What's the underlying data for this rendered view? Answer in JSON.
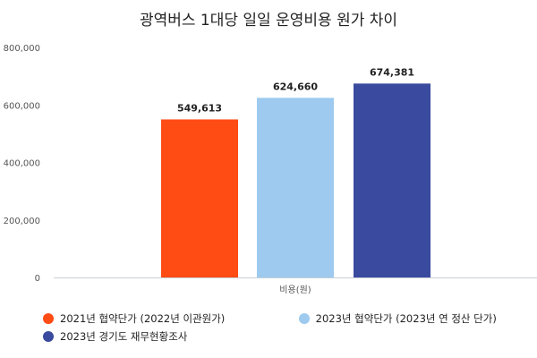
{
  "chart_data": {
    "type": "bar",
    "title": "광역버스 1대당 일일 운영비용 원가 차이",
    "xlabel": "비용(원)",
    "ylabel": "",
    "ylim": [
      0,
      800000
    ],
    "yticks": [
      "0",
      "200,000",
      "400,000",
      "600,000",
      "800,000"
    ],
    "categories": [
      "비용(원)"
    ],
    "grid": false,
    "legend_position": "bottom",
    "series": [
      {
        "name": "2021년 협약단가 (2022년 이관원가)",
        "values": [
          549613
        ],
        "label": "549,613",
        "color": "#FF4B14"
      },
      {
        "name": "2023년 협약단가 (2023년 연 정산 단가)",
        "values": [
          624660
        ],
        "label": "624,660",
        "color": "#9DCAEE"
      },
      {
        "name": "2023년 경기도 재무현황조사",
        "values": [
          674381
        ],
        "label": "674,381",
        "color": "#3A4A9E"
      }
    ]
  }
}
